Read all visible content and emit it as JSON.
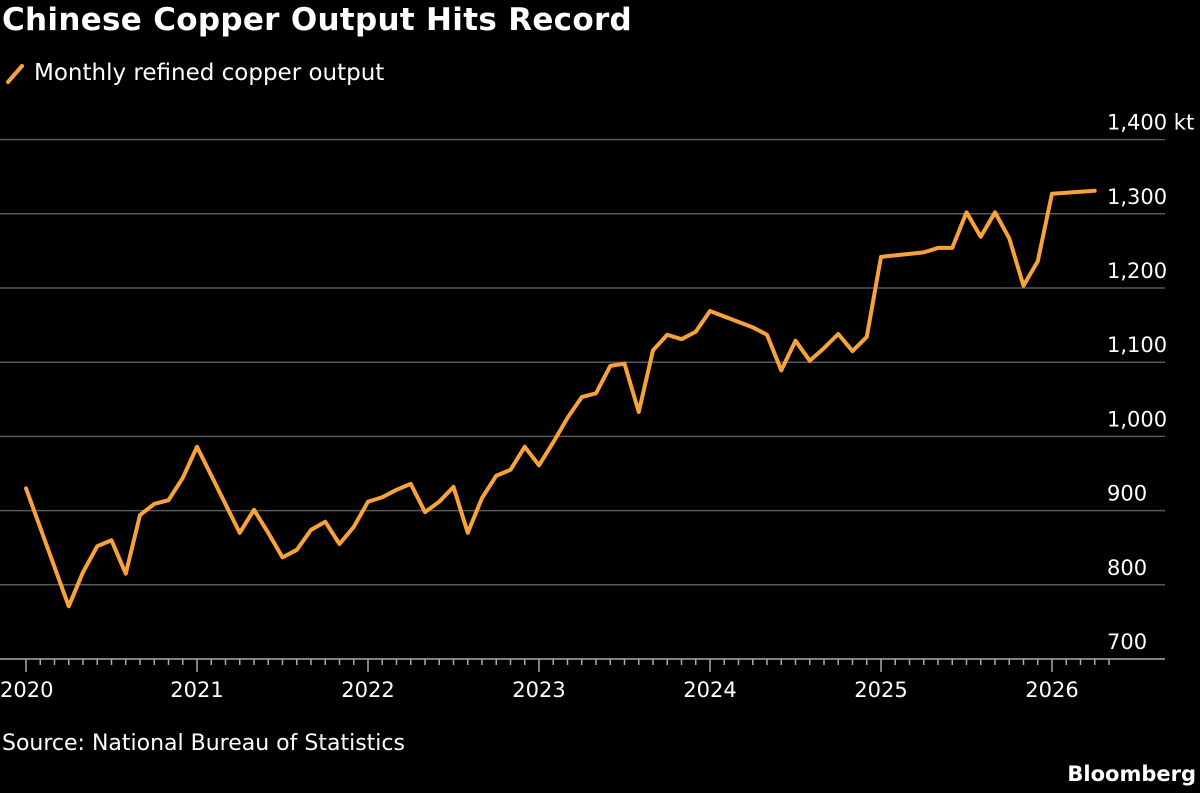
{
  "title": "Chinese Copper Output Hits Record",
  "source": "Source: National Bureau of Statistics",
  "brand": "Bloomberg",
  "colors": {
    "line": "#f7a23b",
    "grid": "#595959",
    "background": "#000000",
    "text": "#ffffff"
  },
  "chart_data": {
    "type": "line",
    "title": "Chinese Copper Output Hits Record",
    "legend": {
      "position": "top-left",
      "entries": [
        "Monthly refined copper output"
      ]
    },
    "grid": true,
    "ylim": [
      700,
      1400
    ],
    "yunit": "kt",
    "yticks": [
      "700",
      "800",
      "900",
      "1,000",
      "1,100",
      "1,200",
      "1,300",
      "1,400 kt"
    ],
    "ytick_values": [
      700,
      800,
      900,
      1000,
      1100,
      1200,
      1300,
      1400
    ],
    "xticks": [
      "2020",
      "2021",
      "2022",
      "2023",
      "2024",
      "2025",
      "2026"
    ],
    "xlim": [
      "2020-01",
      "2026-04"
    ],
    "series": [
      {
        "name": "Monthly refined copper output",
        "x": [
          "2020-01",
          "2020-04",
          "2020-05",
          "2020-06",
          "2020-07",
          "2020-08",
          "2020-09",
          "2020-10",
          "2020-11",
          "2020-12",
          "2021-01",
          "2021-04",
          "2021-05",
          "2021-06",
          "2021-07",
          "2021-08",
          "2021-09",
          "2021-10",
          "2021-11",
          "2021-12",
          "2022-01",
          "2022-02",
          "2022-03",
          "2022-04",
          "2022-05",
          "2022-06",
          "2022-07",
          "2022-08",
          "2022-09",
          "2022-10",
          "2022-11",
          "2022-12",
          "2023-01",
          "2023-02",
          "2023-03",
          "2023-04",
          "2023-05",
          "2023-06",
          "2023-07",
          "2023-08",
          "2023-09",
          "2023-10",
          "2023-11",
          "2023-12",
          "2024-01",
          "2024-04",
          "2024-05",
          "2024-06",
          "2024-07",
          "2024-08",
          "2024-09",
          "2024-10",
          "2024-11",
          "2024-12",
          "2025-01",
          "2025-02",
          "2025-03",
          "2025-04",
          "2025-05",
          "2025-06",
          "2025-07",
          "2025-08",
          "2025-09",
          "2025-10",
          "2025-11",
          "2025-12",
          "2026-01",
          "2026-04"
        ],
        "values": [
          930,
          771,
          817,
          852,
          860,
          815,
          894,
          909,
          914,
          944,
          986,
          870,
          901,
          870,
          837,
          847,
          874,
          885,
          855,
          878,
          912,
          918,
          928,
          936,
          898,
          912,
          932,
          870,
          917,
          947,
          955,
          986,
          961,
          992,
          1025,
          1053,
          1058,
          1095,
          1098,
          1033,
          1116,
          1137,
          1131,
          1141,
          1169,
          1147,
          1137,
          1089,
          1129,
          1102,
          1119,
          1138,
          1115,
          1134,
          1242,
          1244,
          1246,
          1248,
          1254,
          1254,
          1302,
          1269,
          1302,
          1267,
          1203,
          1236,
          1327,
          1331
        ]
      }
    ]
  }
}
